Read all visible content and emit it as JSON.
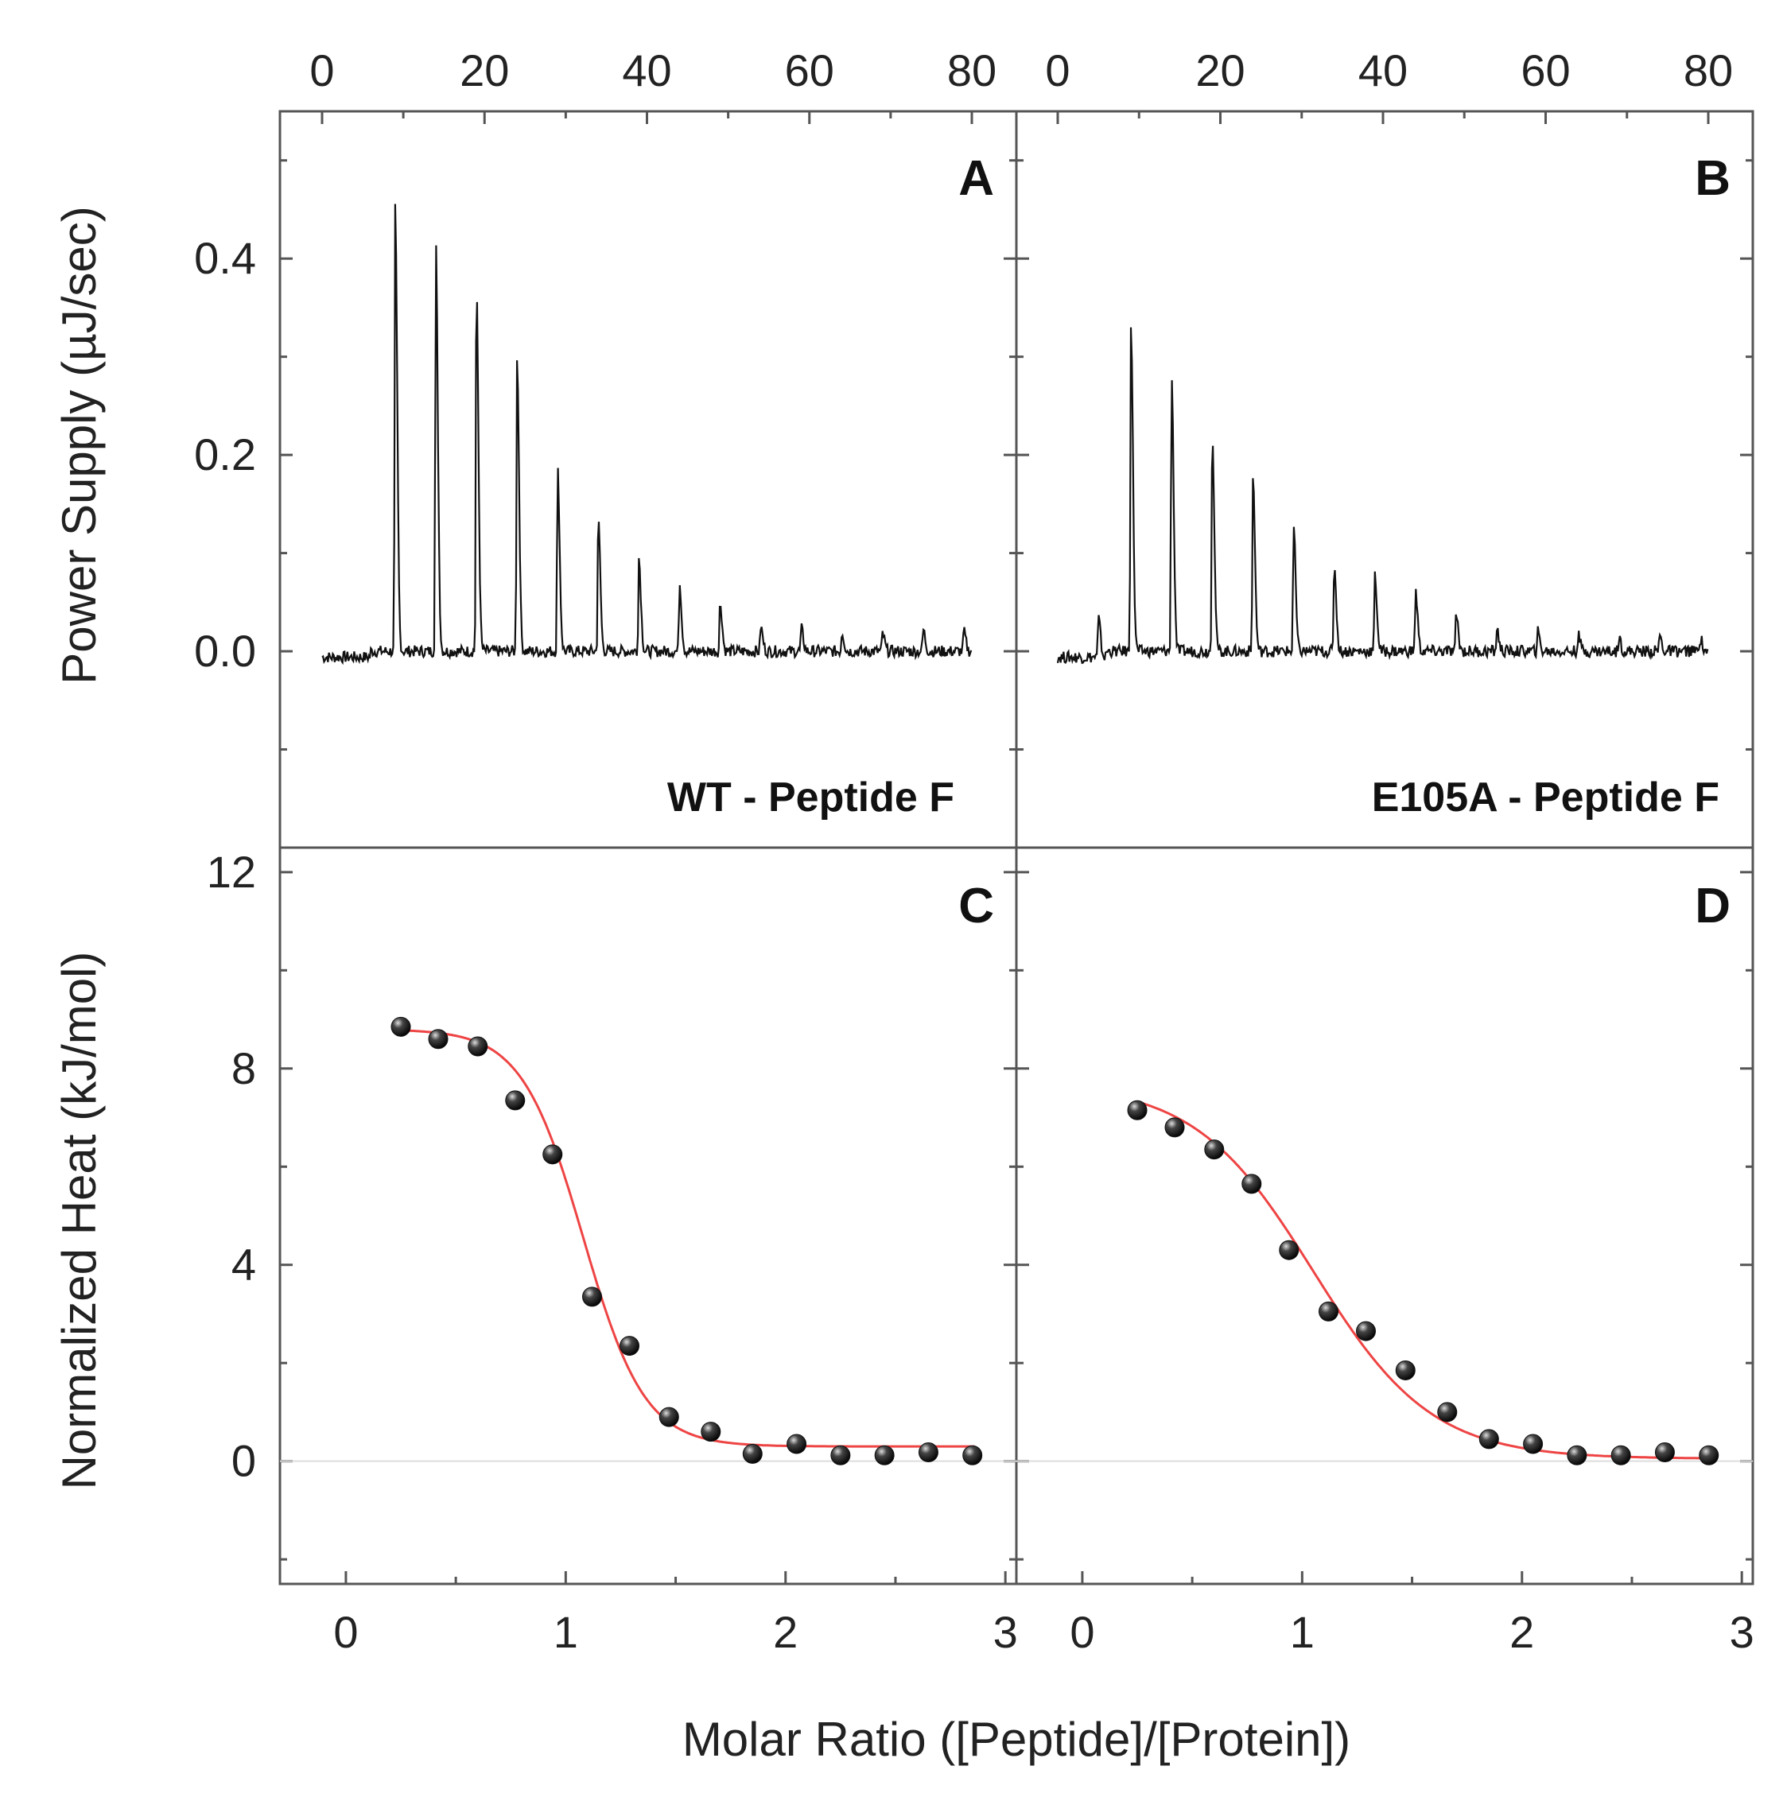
{
  "chart_data": [
    {
      "panel": "A",
      "type": "line",
      "annotation": "WT - Peptide F",
      "ylabel": "Power Supply (µJ/sec)",
      "x_top_ticks": [
        "0",
        "20",
        "40",
        "60",
        "80"
      ],
      "xlim": [
        0,
        85
      ],
      "ylim": [
        -0.2,
        0.55
      ],
      "y_ticks": [
        "0.0",
        "0.2",
        "0.4"
      ],
      "injections": {
        "time": [
          9,
          14,
          19,
          24,
          29,
          34,
          39,
          44,
          49,
          54,
          59,
          64,
          69,
          74,
          79
        ],
        "peak": [
          0.45,
          0.415,
          0.37,
          0.3,
          0.185,
          0.135,
          0.095,
          0.07,
          0.05,
          0.025,
          0.023,
          0.02,
          0.018,
          0.022,
          0.02
        ]
      },
      "trace_start": 0
    },
    {
      "panel": "B",
      "type": "line",
      "annotation": "E105A - Peptide F",
      "x_top_ticks": [
        "0",
        "20",
        "40",
        "60",
        "80"
      ],
      "xlim": [
        0,
        85
      ],
      "ylim": [
        -0.2,
        0.55
      ],
      "injections": {
        "time": [
          5,
          9,
          14,
          19,
          24,
          29,
          34,
          39,
          44,
          49,
          54,
          59,
          64,
          69,
          74,
          79
        ],
        "peak": [
          0.04,
          0.335,
          0.285,
          0.225,
          0.18,
          0.128,
          0.088,
          0.078,
          0.062,
          0.038,
          0.022,
          0.02,
          0.016,
          0.014,
          0.016,
          0.014
        ]
      },
      "trace_start": 1
    },
    {
      "panel": "C",
      "type": "scatter",
      "ylabel": "Normalized Heat (kJ/mol)",
      "xlim": [
        -0.3,
        3.05
      ],
      "ylim": [
        -2.5,
        12.5
      ],
      "x_ticks": [
        "0",
        "1",
        "2",
        "3"
      ],
      "y_ticks": [
        "0",
        "4",
        "8",
        "12"
      ],
      "x": [
        0.25,
        0.42,
        0.6,
        0.77,
        0.94,
        1.12,
        1.29,
        1.47,
        1.66,
        1.85,
        2.05,
        2.25,
        2.45,
        2.65,
        2.85
      ],
      "y": [
        8.85,
        8.6,
        8.45,
        7.35,
        6.25,
        3.35,
        2.35,
        0.9,
        0.6,
        0.15,
        0.35,
        0.12,
        0.12,
        0.18,
        0.12
      ],
      "fit": {
        "A0": 8.8,
        "A1": 0.3,
        "x0": 1.08,
        "w": 0.14
      }
    },
    {
      "panel": "D",
      "type": "scatter",
      "xlim": [
        -0.3,
        3.05
      ],
      "ylim": [
        -2.5,
        12.5
      ],
      "x_ticks": [
        "0",
        "1",
        "2",
        "3"
      ],
      "x": [
        0.25,
        0.42,
        0.6,
        0.77,
        0.94,
        1.12,
        1.29,
        1.47,
        1.66,
        1.85,
        2.05,
        2.25,
        2.45,
        2.65,
        2.85
      ],
      "y": [
        7.15,
        6.8,
        6.35,
        5.65,
        4.3,
        3.05,
        2.65,
        1.85,
        1.0,
        0.45,
        0.35,
        0.12,
        0.12,
        0.18,
        0.12
      ],
      "fit": {
        "A0": 7.7,
        "A1": 0.05,
        "x0": 1.05,
        "w": 0.27
      }
    }
  ],
  "shared": {
    "xlabel": "Molar Ratio ([Peptide]/[Protein])",
    "fit_color": "#ee4444",
    "marker_color": "#111111",
    "trace_color": "#111111"
  }
}
